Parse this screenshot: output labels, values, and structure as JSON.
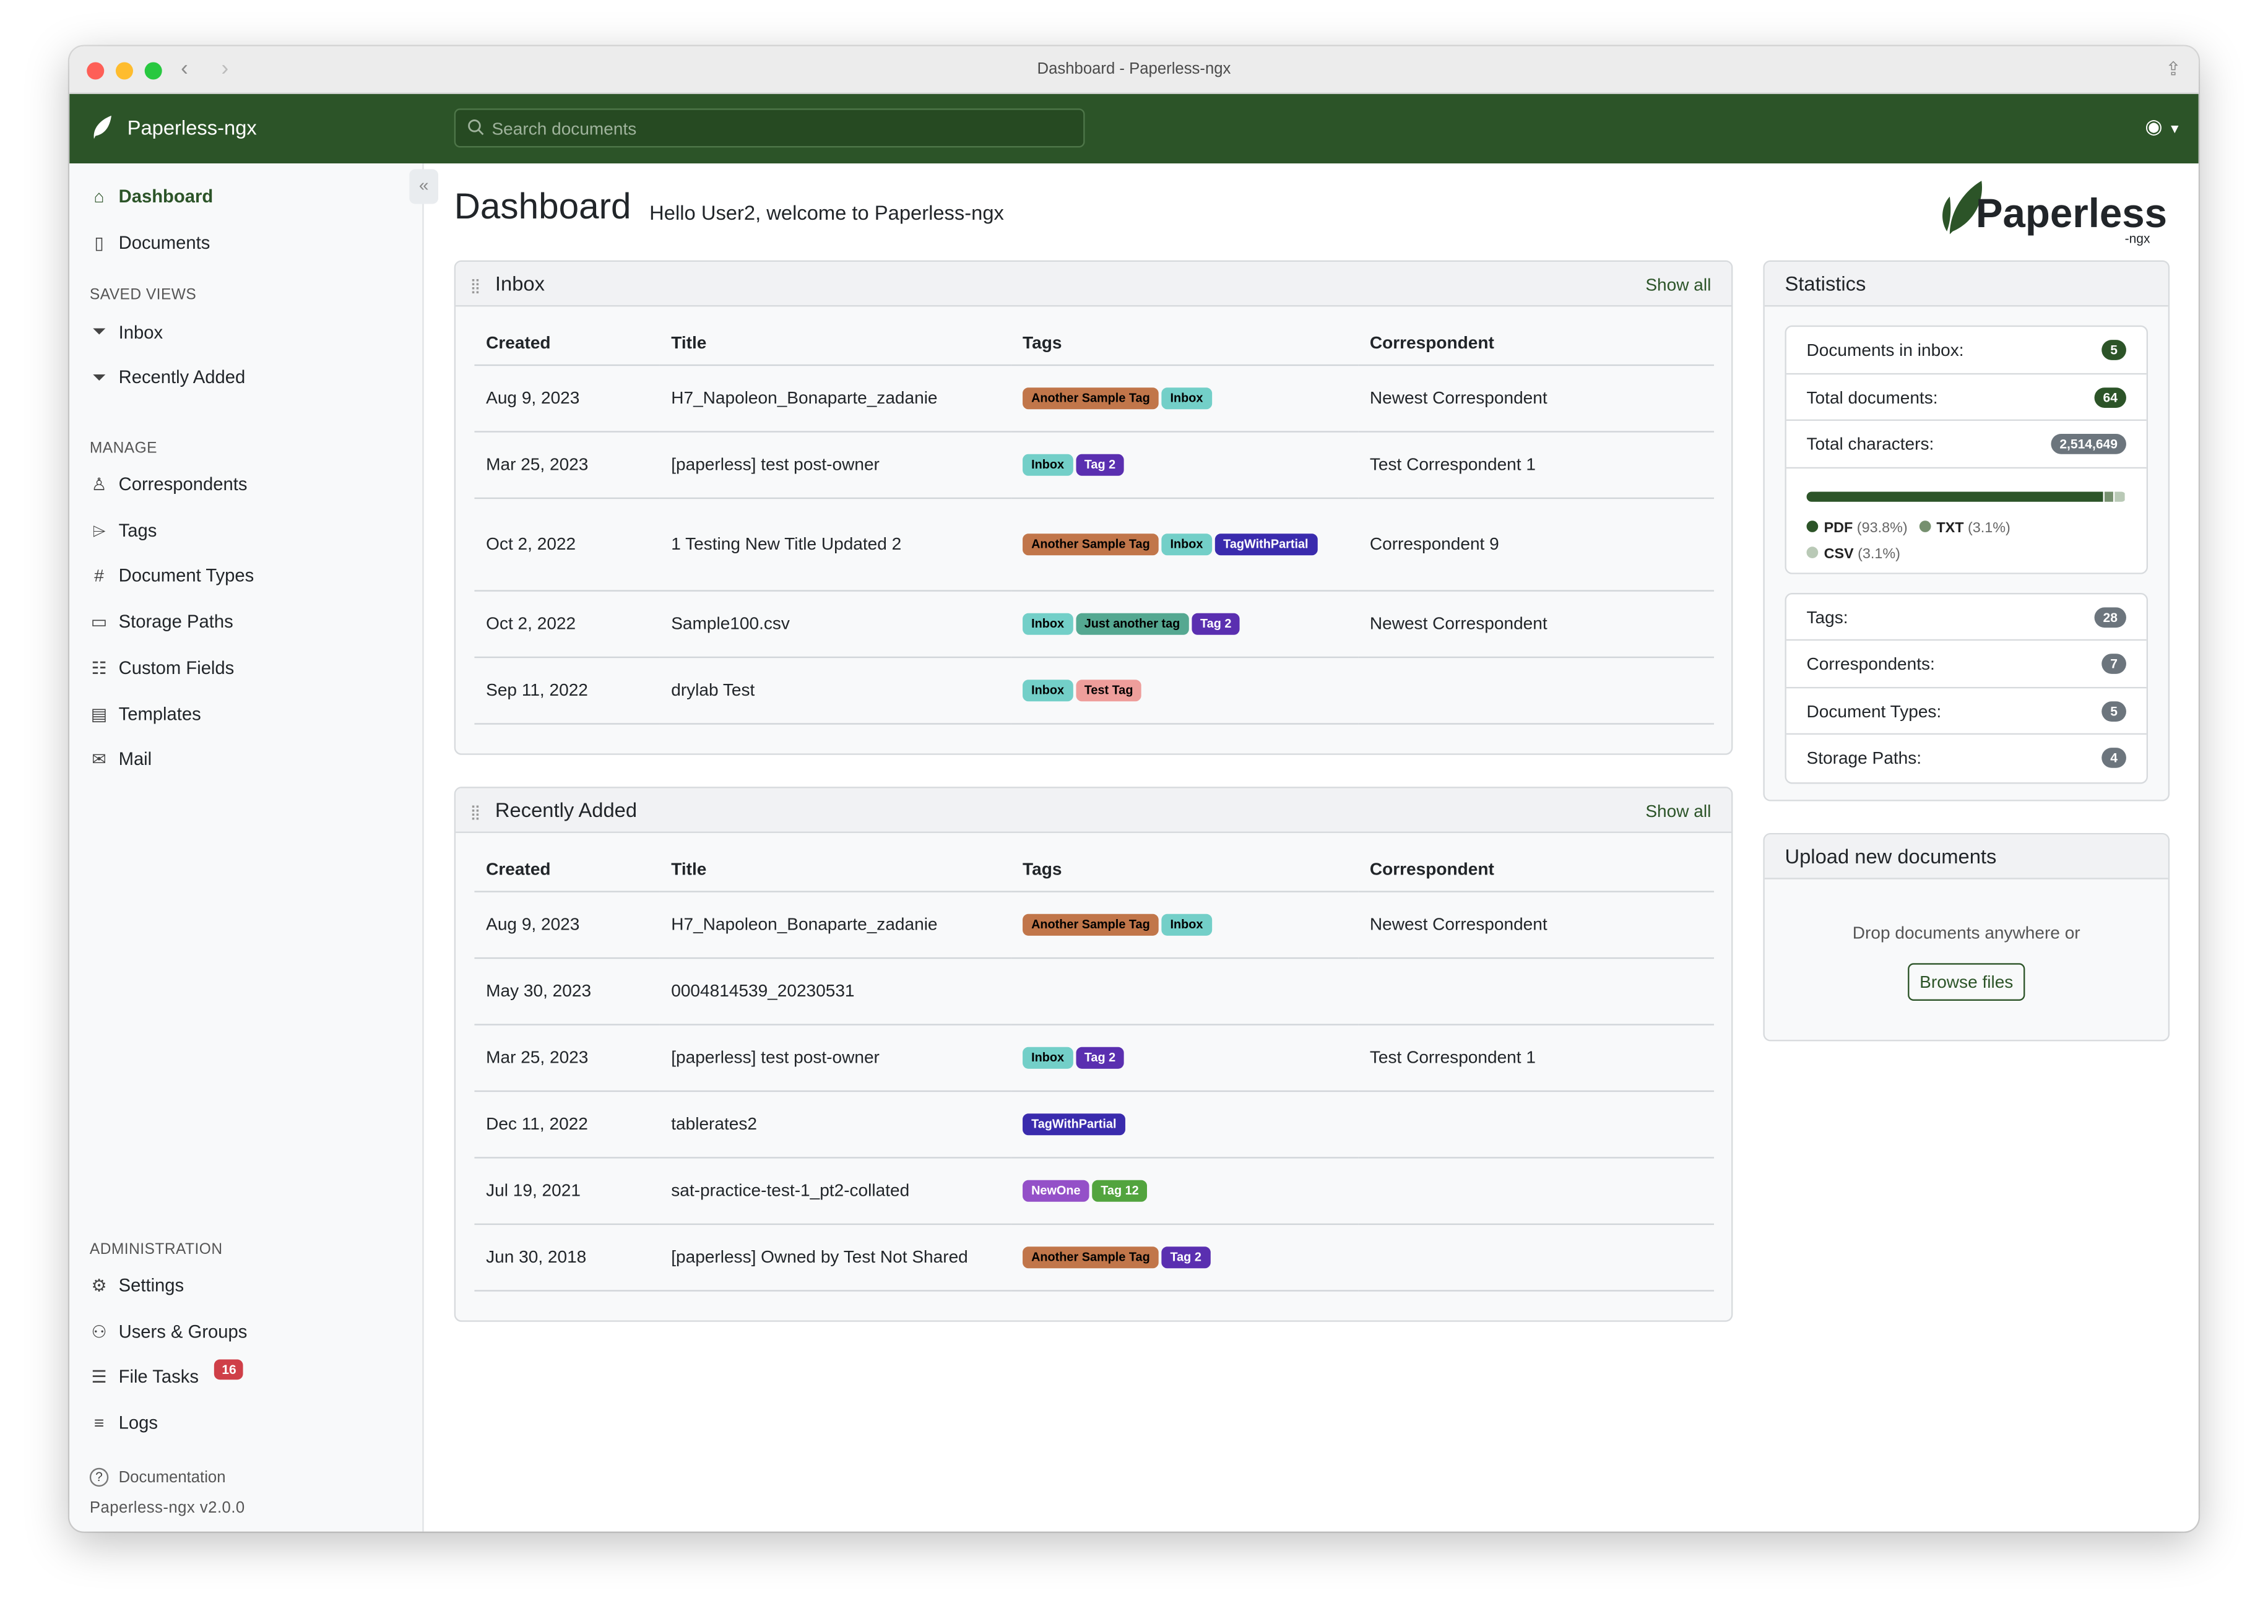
{
  "window": {
    "title": "Dashboard - Paperless-ngx"
  },
  "header": {
    "app_name": "Paperless-ngx",
    "search_placeholder": "Search documents"
  },
  "sidebar": {
    "main": [
      {
        "label": "Dashboard",
        "icon": "house-icon",
        "active": true
      },
      {
        "label": "Documents",
        "icon": "file-icon"
      }
    ],
    "saved_views_heading": "SAVED VIEWS",
    "saved_views": [
      {
        "label": "Inbox",
        "icon": "funnel-icon"
      },
      {
        "label": "Recently Added",
        "icon": "funnel-icon"
      }
    ],
    "manage_heading": "MANAGE",
    "manage": [
      {
        "label": "Correspondents",
        "icon": "person-icon"
      },
      {
        "label": "Tags",
        "icon": "tags-icon"
      },
      {
        "label": "Document Types",
        "icon": "hash-icon"
      },
      {
        "label": "Storage Paths",
        "icon": "folder-icon"
      },
      {
        "label": "Custom Fields",
        "icon": "ui-radios-icon"
      },
      {
        "label": "Templates",
        "icon": "file-text-icon"
      },
      {
        "label": "Mail",
        "icon": "envelope-icon"
      }
    ],
    "admin_heading": "ADMINISTRATION",
    "admin": [
      {
        "label": "Settings",
        "icon": "gear-icon"
      },
      {
        "label": "Users & Groups",
        "icon": "people-icon"
      },
      {
        "label": "File Tasks",
        "icon": "list-task-icon",
        "badge": "16"
      },
      {
        "label": "Logs",
        "icon": "text-left-icon"
      }
    ],
    "documentation": "Documentation",
    "version": "Paperless-ngx v2.0.0"
  },
  "page": {
    "title": "Dashboard",
    "welcome": "Hello User2, welcome to Paperless-ngx",
    "logo_text": "Paperless",
    "logo_sub": "-ngx"
  },
  "tags": {
    "Another Sample Tag": {
      "bg": "#c1764a",
      "fg": "#000"
    },
    "Inbox": {
      "bg": "#73cfc8",
      "fg": "#000"
    },
    "Tag 2": {
      "bg": "#5a2fb0",
      "fg": "#fff"
    },
    "TagWithPartial": {
      "bg": "#3a2bad",
      "fg": "#fff"
    },
    "Just another tag": {
      "bg": "#55a891",
      "fg": "#000"
    },
    "Test Tag": {
      "bg": "#ee9e9b",
      "fg": "#000"
    },
    "NewOne": {
      "bg": "#9450c8",
      "fg": "#fff"
    },
    "Tag 12": {
      "bg": "#52a43e",
      "fg": "#fff"
    }
  },
  "columns": [
    "Created",
    "Title",
    "Tags",
    "Correspondent"
  ],
  "inbox": {
    "title": "Inbox",
    "show_all": "Show all",
    "rows": [
      {
        "created": "Aug 9, 2023",
        "title": "H7_Napoleon_Bonaparte_zadanie",
        "tags": [
          "Another Sample Tag",
          "Inbox"
        ],
        "correspondent": "Newest Correspondent"
      },
      {
        "created": "Mar 25, 2023",
        "title": "[paperless] test post-owner",
        "tags": [
          "Inbox",
          "Tag 2"
        ],
        "correspondent": "Test Correspondent 1"
      },
      {
        "created": "Oct 2, 2022",
        "title": "1 Testing New Title Updated 2",
        "tags": [
          "Another Sample Tag",
          "Inbox",
          "TagWithPartial"
        ],
        "correspondent": "Correspondent 9"
      },
      {
        "created": "Oct 2, 2022",
        "title": "Sample100.csv",
        "tags": [
          "Inbox",
          "Just another tag",
          "Tag 2"
        ],
        "correspondent": "Newest Correspondent"
      },
      {
        "created": "Sep 11, 2022",
        "title": "drylab Test",
        "tags": [
          "Inbox",
          "Test Tag"
        ],
        "correspondent": ""
      }
    ]
  },
  "recent": {
    "title": "Recently Added",
    "show_all": "Show all",
    "rows": [
      {
        "created": "Aug 9, 2023",
        "title": "H7_Napoleon_Bonaparte_zadanie",
        "tags": [
          "Another Sample Tag",
          "Inbox"
        ],
        "correspondent": "Newest Correspondent"
      },
      {
        "created": "May 30, 2023",
        "title": "0004814539_20230531",
        "tags": [],
        "correspondent": ""
      },
      {
        "created": "Mar 25, 2023",
        "title": "[paperless] test post-owner",
        "tags": [
          "Inbox",
          "Tag 2"
        ],
        "correspondent": "Test Correspondent 1"
      },
      {
        "created": "Dec 11, 2022",
        "title": "tablerates2",
        "tags": [
          "TagWithPartial"
        ],
        "correspondent": ""
      },
      {
        "created": "Jul 19, 2021",
        "title": "sat-practice-test-1_pt2-collated",
        "tags": [
          "NewOne",
          "Tag 12"
        ],
        "correspondent": ""
      },
      {
        "created": "Jun 30, 2018",
        "title": "[paperless] Owned by Test Not Shared",
        "tags": [
          "Another Sample Tag",
          "Tag 2"
        ],
        "correspondent": ""
      }
    ]
  },
  "statistics": {
    "title": "Statistics",
    "top": [
      {
        "label": "Documents in inbox:",
        "value": "5",
        "color": "#2c5428"
      },
      {
        "label": "Total documents:",
        "value": "64",
        "color": "#2c5428"
      },
      {
        "label": "Total characters:",
        "value": "2,514,649",
        "color": "#6c757d"
      }
    ],
    "file_types": [
      {
        "name": "PDF",
        "pct_label": "(93.8%)",
        "pct": 93.8,
        "color": "#2c5428"
      },
      {
        "name": "TXT",
        "pct_label": "(3.1%)",
        "pct": 3.1,
        "color": "#76906f"
      },
      {
        "name": "CSV",
        "pct_label": "(3.1%)",
        "pct": 3.1,
        "color": "#b9c9b6"
      }
    ],
    "counts": [
      {
        "label": "Tags:",
        "value": "28"
      },
      {
        "label": "Correspondents:",
        "value": "7"
      },
      {
        "label": "Document Types:",
        "value": "5"
      },
      {
        "label": "Storage Paths:",
        "value": "4"
      }
    ]
  },
  "upload": {
    "title": "Upload new documents",
    "hint": "Drop documents anywhere or",
    "browse": "Browse files"
  }
}
